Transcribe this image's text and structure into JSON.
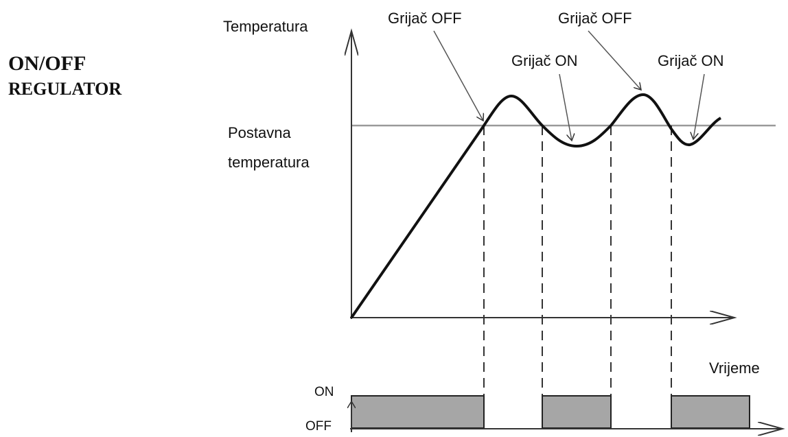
{
  "title": {
    "line1": "ON/OFF",
    "line2": "REGULATOR"
  },
  "axes": {
    "y_label": "Temperatura",
    "x_label": "Vrijeme"
  },
  "setpoint": {
    "line1": "Postavna",
    "line2": "temperatura"
  },
  "annotations": [
    "Grijač OFF",
    "Grijač ON",
    "Grijač OFF",
    "Grijač ON"
  ],
  "states": {
    "on": "ON",
    "off": "OFF"
  }
}
